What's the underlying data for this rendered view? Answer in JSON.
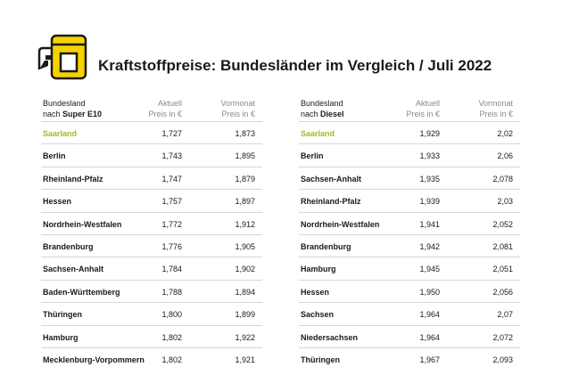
{
  "title": "Kraftstoffpreise: Bundesländer im Vergleich / Juli 2022",
  "colors": {
    "accent_yellow": "#f6d200",
    "highlight_green": "#9bbb2c",
    "rule": "#d6d6d6"
  },
  "left": {
    "header": {
      "col1_line1": "Bundesland",
      "col1_line2_prefix": "nach ",
      "col1_line2_bold": "Super E10",
      "col2_line1": "Aktuell",
      "col2_line2": "Preis in €",
      "col3_line1": "Vormonat",
      "col3_line2": "Preis in €"
    },
    "rows": [
      {
        "name": "Saarland",
        "current": "1,727",
        "previous": "1,873"
      },
      {
        "name": "Berlin",
        "current": "1,743",
        "previous": "1,895"
      },
      {
        "name": "Rheinland-Pfalz",
        "current": "1,747",
        "previous": "1,879"
      },
      {
        "name": "Hessen",
        "current": "1,757",
        "previous": "1,897"
      },
      {
        "name": "Nordrhein-Westfalen",
        "current": "1,772",
        "previous": "1,912"
      },
      {
        "name": "Brandenburg",
        "current": "1,776",
        "previous": "1,905"
      },
      {
        "name": "Sachsen-Anhalt",
        "current": "1,784",
        "previous": "1,902"
      },
      {
        "name": "Baden-Württemberg",
        "current": "1,788",
        "previous": "1,894"
      },
      {
        "name": "Thüringen",
        "current": "1,800",
        "previous": "1,899"
      },
      {
        "name": "Hamburg",
        "current": "1,802",
        "previous": "1,922"
      },
      {
        "name": "Mecklenburg-Vorpommern",
        "current": "1,802",
        "previous": "1,921"
      }
    ]
  },
  "right": {
    "header": {
      "col1_line1": "Bundesland",
      "col1_line2_prefix": "nach ",
      "col1_line2_bold": "Diesel",
      "col2_line1": "Aktuell",
      "col2_line2": "Preis in €",
      "col3_line1": "Vormonat",
      "col3_line2": "Preis in €"
    },
    "rows": [
      {
        "name": "Saarland",
        "current": "1,929",
        "previous": "2,02"
      },
      {
        "name": "Berlin",
        "current": "1,933",
        "previous": "2,06"
      },
      {
        "name": "Sachsen-Anhalt",
        "current": "1,935",
        "previous": "2,078"
      },
      {
        "name": "Rheinland-Pfalz",
        "current": "1,939",
        "previous": "2,03"
      },
      {
        "name": "Nordrhein-Westfalen",
        "current": "1,941",
        "previous": "2,052"
      },
      {
        "name": "Brandenburg",
        "current": "1,942",
        "previous": "2,081"
      },
      {
        "name": "Hamburg",
        "current": "1,945",
        "previous": "2,051"
      },
      {
        "name": "Hessen",
        "current": "1,950",
        "previous": "2,056"
      },
      {
        "name": "Sachsen",
        "current": "1,964",
        "previous": "2,07"
      },
      {
        "name": "Niedersachsen",
        "current": "1,964",
        "previous": "2,072"
      },
      {
        "name": "Thüringen",
        "current": "1,967",
        "previous": "2,093"
      }
    ]
  }
}
